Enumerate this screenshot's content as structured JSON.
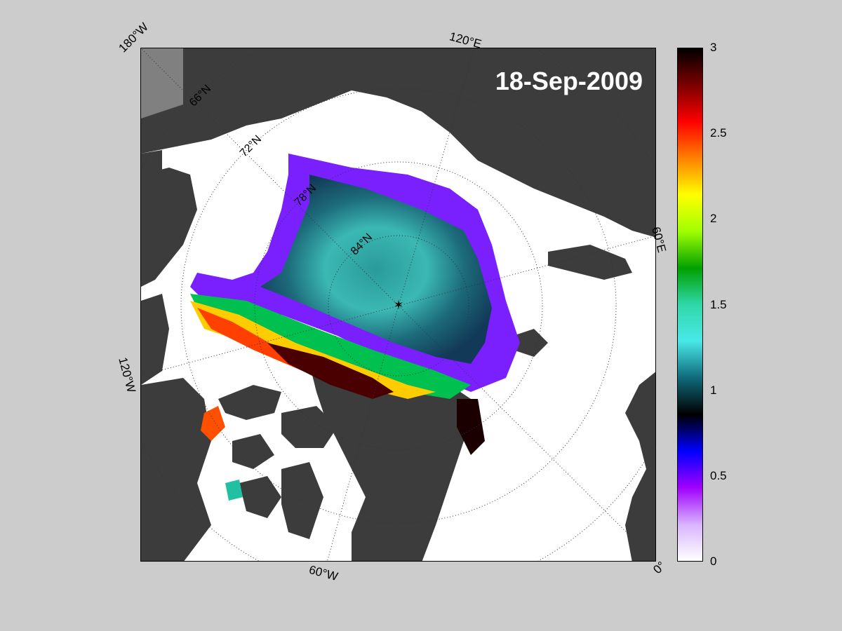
{
  "map": {
    "date": "18-Sep-2009",
    "longitude_labels": [
      "180°W",
      "120°E",
      "60°E",
      "0°",
      "60°W",
      "120°W"
    ],
    "latitude_labels": [
      "66°N",
      "72°N",
      "78°N",
      "84°N"
    ]
  },
  "colorbar": {
    "min": 0,
    "max": 3,
    "tick_labels": [
      "3",
      "2.5",
      "2",
      "1.5",
      "1",
      "0.5",
      "0"
    ],
    "colors": [
      "#ffffff",
      "#d8b4ff",
      "#a000ff",
      "#0000ff",
      "#000000",
      "#0f6a7a",
      "#48e8e8",
      "#2fd8a8",
      "#00a000",
      "#a0ff00",
      "#ffff00",
      "#ff8000",
      "#ff0000",
      "#7a0000",
      "#000000"
    ]
  },
  "colors": {
    "background": "#cccccc",
    "land": "#3c3c3c",
    "ice_free_ocean": "#ffffff"
  }
}
